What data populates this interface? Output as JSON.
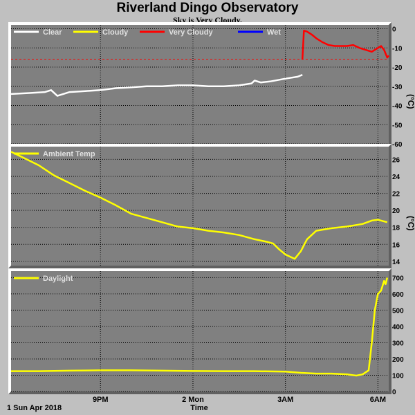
{
  "header": {
    "title": "Riverland Dingo Observatory",
    "subtitle": "Sky is Very Cloudy."
  },
  "footer": {
    "date_label": "1 Sun Apr 2018",
    "xaxis_title": "Time"
  },
  "chart_data": [
    {
      "type": "line",
      "panel": "sky",
      "legend_placement": "top-left",
      "grid": true,
      "ylabel": "(°C)",
      "ylim": [
        -60,
        2
      ],
      "yticks": [
        0,
        -10,
        -20,
        -30,
        -40,
        -50,
        -60
      ],
      "xlim_hours": [
        -5.9,
        6.35
      ],
      "xtick_hours": [
        -3,
        0,
        3,
        6
      ],
      "xtick_labels": [
        "9PM",
        "2 Mon",
        "3AM",
        "6AM"
      ],
      "reference_line": {
        "y": -16,
        "color": "#ff0000",
        "style": "dashed"
      },
      "series": [
        {
          "name": "Clear",
          "color": "#ffffff",
          "x": [
            -5.9,
            -5.3,
            -4.8,
            -4.6,
            -4.4,
            -4.0,
            -3.5,
            -3.0,
            -2.5,
            -2.0,
            -1.5,
            -1.0,
            -0.5,
            0.0,
            0.5,
            1.0,
            1.5,
            1.9,
            2.0,
            2.2,
            2.5,
            3.0,
            3.4,
            3.55
          ],
          "y": [
            -34,
            -33.5,
            -33,
            -32,
            -35,
            -33,
            -32.5,
            -32,
            -31,
            -30.5,
            -30,
            -30,
            -29.5,
            -29.5,
            -30,
            -30,
            -29.5,
            -28.5,
            -27,
            -28,
            -27.5,
            -26,
            -25,
            -24
          ]
        },
        {
          "name": "Cloudy",
          "color": "#ffff00",
          "x": [],
          "y": []
        },
        {
          "name": "Very Cloudy",
          "color": "#ff0000",
          "x": [
            3.55,
            3.6,
            3.7,
            3.85,
            4.0,
            4.2,
            4.4,
            4.6,
            4.8,
            5.0,
            5.2,
            5.4,
            5.6,
            5.8,
            6.0,
            6.1,
            6.2,
            6.3,
            6.35
          ],
          "y": [
            -16,
            -1,
            -1.5,
            -3,
            -5,
            -7,
            -8.5,
            -9,
            -9,
            -9,
            -8.5,
            -10,
            -11,
            -12,
            -10,
            -9,
            -11,
            -15,
            -14
          ]
        },
        {
          "name": "Wet",
          "color": "#0000ff",
          "x": [],
          "y": []
        }
      ]
    },
    {
      "type": "line",
      "panel": "ambient",
      "legend_placement": "top-left",
      "grid": true,
      "ylabel": "(°C)",
      "ylim": [
        13.5,
        27.5
      ],
      "yticks": [
        14,
        16,
        18,
        20,
        22,
        24,
        26
      ],
      "xlim_hours": [
        -5.9,
        6.35
      ],
      "series": [
        {
          "name": "Ambient Temp",
          "color": "#ffff00",
          "x": [
            -5.9,
            -5.5,
            -5.0,
            -4.5,
            -4.0,
            -3.5,
            -3.0,
            -2.5,
            -2.0,
            -1.5,
            -1.0,
            -0.5,
            0.0,
            0.5,
            1.0,
            1.5,
            2.0,
            2.4,
            2.6,
            2.8,
            3.0,
            3.3,
            3.5,
            3.7,
            4.0,
            4.5,
            5.0,
            5.5,
            5.8,
            6.0,
            6.3
          ],
          "y": [
            26.9,
            26.2,
            25.3,
            24.1,
            23.2,
            22.3,
            21.5,
            20.6,
            19.6,
            19.1,
            18.6,
            18.1,
            17.9,
            17.6,
            17.4,
            17.1,
            16.6,
            16.3,
            16.1,
            15.4,
            14.8,
            14.3,
            15.2,
            16.6,
            17.6,
            17.9,
            18.1,
            18.4,
            18.8,
            18.9,
            18.6
          ]
        }
      ]
    },
    {
      "type": "line",
      "panel": "daylight",
      "legend_placement": "top-left",
      "grid": true,
      "ylabel": "",
      "ylim": [
        0,
        740
      ],
      "yticks": [
        0,
        100,
        200,
        300,
        400,
        500,
        600,
        700
      ],
      "xlim_hours": [
        -5.9,
        6.35
      ],
      "series": [
        {
          "name": "Daylight",
          "color": "#ffff00",
          "x": [
            -5.9,
            -5.0,
            -4.0,
            -3.0,
            -2.0,
            -1.0,
            0.0,
            1.0,
            2.0,
            3.0,
            3.5,
            4.0,
            4.5,
            5.0,
            5.3,
            5.5,
            5.7,
            5.8,
            5.9,
            6.0,
            6.1,
            6.2,
            6.25,
            6.3
          ],
          "y": [
            125,
            125,
            128,
            130,
            130,
            128,
            126,
            125,
            125,
            122,
            115,
            110,
            110,
            105,
            98,
            105,
            130,
            300,
            500,
            600,
            620,
            680,
            660,
            700
          ]
        }
      ]
    }
  ]
}
